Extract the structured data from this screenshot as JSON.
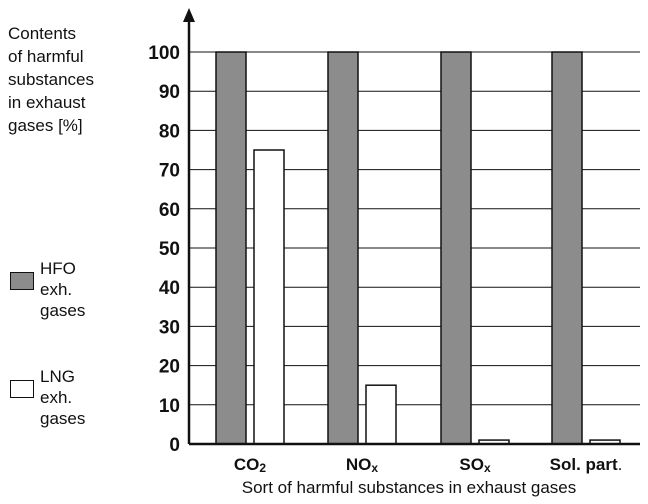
{
  "chart_data": {
    "type": "bar",
    "ylabel": "Contents\nof harmful\nsubstances\nin exhaust\ngases  [%]",
    "xlabel": "Sort of harmful substances in exhaust gases",
    "ylim": [
      0,
      100
    ],
    "yticks": [
      0,
      10,
      20,
      30,
      40,
      50,
      60,
      70,
      80,
      90,
      100
    ],
    "grid": true,
    "legend_position": "left",
    "categories": [
      {
        "main": "CO",
        "sub": "2",
        "suffix": ""
      },
      {
        "main": "NO",
        "sub": "x",
        "suffix": ""
      },
      {
        "main": "SO",
        "sub": "x",
        "suffix": ""
      },
      {
        "main": "Sol. part",
        "sub": "",
        "suffix": "."
      }
    ],
    "series": [
      {
        "name": "HFO\nexh.\ngases",
        "color": "#8c8c8c",
        "values": [
          100,
          100,
          100,
          100
        ]
      },
      {
        "name": "LNG\nexh.\ngases",
        "color": "#ffffff",
        "values": [
          75,
          15,
          1,
          1
        ]
      }
    ]
  }
}
